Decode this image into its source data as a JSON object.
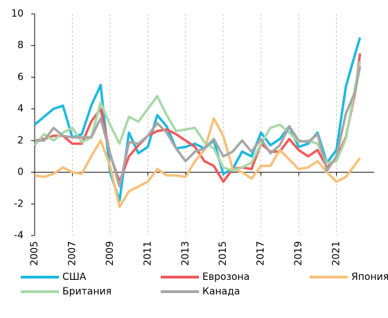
{
  "chart_data": {
    "type": "line",
    "x": [
      2005,
      2005.5,
      2006,
      2006.5,
      2007,
      2007.5,
      2008,
      2008.5,
      2009,
      2009.5,
      2010,
      2010.5,
      2011,
      2011.5,
      2012,
      2012.5,
      2013,
      2013.5,
      2014,
      2014.5,
      2015,
      2015.5,
      2016,
      2016.5,
      2017,
      2017.5,
      2018,
      2018.5,
      2019,
      2019.5,
      2020,
      2020.5,
      2021,
      2021.5,
      2022,
      2022.25
    ],
    "series": [
      {
        "name": "США",
        "color": "#1cb8e0",
        "values": [
          3.0,
          3.5,
          4.0,
          4.2,
          2.2,
          2.4,
          4.2,
          5.5,
          0.0,
          -1.8,
          2.5,
          1.2,
          1.6,
          3.6,
          2.9,
          1.5,
          1.6,
          1.8,
          1.5,
          2.0,
          -0.1,
          0.2,
          1.3,
          1.0,
          2.5,
          1.7,
          2.1,
          2.9,
          1.6,
          1.8,
          2.5,
          0.6,
          1.4,
          5.4,
          7.5,
          8.5
        ]
      },
      {
        "name": "Еврозона",
        "color": "#f05a5a",
        "values": [
          2.0,
          2.1,
          2.3,
          2.3,
          1.8,
          1.8,
          3.2,
          4.0,
          1.1,
          -0.6,
          1.0,
          1.7,
          2.3,
          2.6,
          2.7,
          2.4,
          2.0,
          1.6,
          0.7,
          0.4,
          -0.6,
          0.2,
          0.3,
          0.2,
          1.8,
          1.3,
          1.3,
          2.1,
          1.4,
          1.0,
          1.4,
          0.3,
          0.9,
          2.2,
          5.1,
          7.5
        ]
      },
      {
        "name": "Япония",
        "color": "#f7c07a",
        "values": [
          -0.2,
          -0.3,
          -0.1,
          0.3,
          0.0,
          -0.1,
          1.0,
          2.0,
          0.4,
          -2.2,
          -1.2,
          -0.9,
          -0.6,
          0.2,
          -0.2,
          -0.2,
          -0.3,
          0.7,
          1.4,
          3.4,
          2.3,
          0.2,
          0.0,
          -0.4,
          0.4,
          0.4,
          1.4,
          0.8,
          0.2,
          0.3,
          0.7,
          0.0,
          -0.6,
          -0.3,
          0.5,
          0.9
        ]
      },
      {
        "name": "Британия",
        "color": "#a8d8a8",
        "values": [
          1.7,
          2.4,
          2.0,
          2.5,
          2.8,
          1.9,
          2.2,
          4.4,
          3.0,
          1.8,
          3.5,
          3.2,
          4.0,
          4.8,
          3.6,
          2.6,
          2.7,
          2.8,
          1.9,
          1.5,
          0.3,
          0.1,
          0.3,
          0.6,
          1.8,
          2.8,
          3.0,
          2.5,
          1.9,
          2.0,
          1.8,
          0.6,
          0.7,
          2.1,
          5.4,
          7.0
        ]
      },
      {
        "name": "Канада",
        "color": "#a6a6a6",
        "values": [
          2.0,
          2.0,
          2.8,
          2.3,
          2.2,
          2.2,
          2.2,
          3.4,
          1.2,
          -0.9,
          1.9,
          1.8,
          2.3,
          3.1,
          2.5,
          1.5,
          0.7,
          1.3,
          1.5,
          2.1,
          1.0,
          1.3,
          2.0,
          1.3,
          2.1,
          1.2,
          1.7,
          2.9,
          2.0,
          1.9,
          2.4,
          0.1,
          1.0,
          3.7,
          5.1,
          6.7
        ]
      }
    ],
    "xlim": [
      2005,
      2023
    ],
    "xticks": [
      2005,
      2007,
      2009,
      2011,
      2013,
      2015,
      2017,
      2019,
      2021
    ],
    "ylim": [
      -4,
      10
    ],
    "yticks": [
      -4,
      -2,
      0,
      2,
      4,
      6,
      8,
      10
    ],
    "grid": "x"
  }
}
